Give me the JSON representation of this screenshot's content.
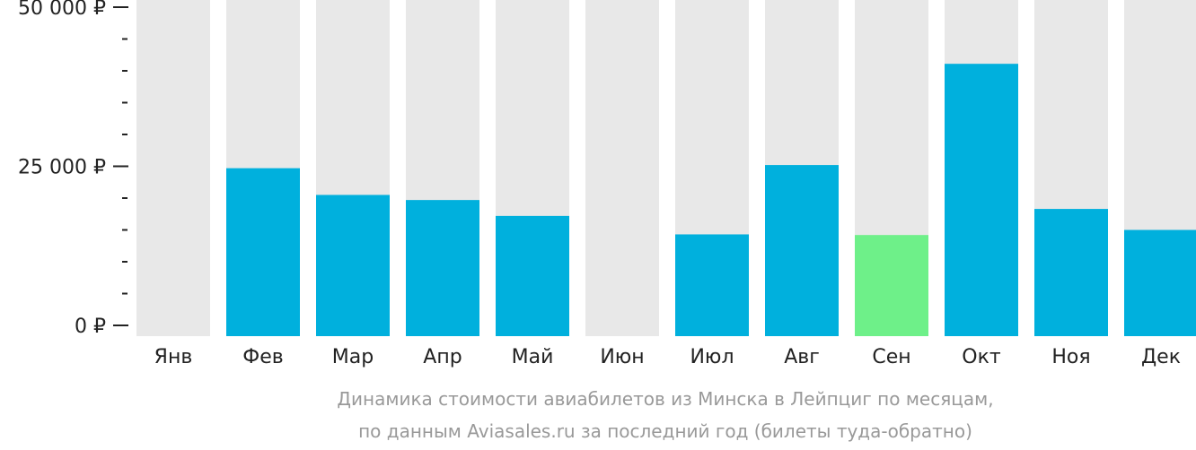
{
  "chart_data": {
    "type": "bar",
    "categories": [
      "Янв",
      "Фев",
      "Мар",
      "Апр",
      "Май",
      "Июн",
      "Июл",
      "Авг",
      "Сен",
      "Окт",
      "Ноя",
      "Дек"
    ],
    "values": [
      null,
      24700,
      20500,
      19700,
      17200,
      null,
      14300,
      25200,
      14200,
      41100,
      18300,
      15000
    ],
    "ylim": [
      0,
      50000
    ],
    "yticks": [
      {
        "value": 0,
        "label": "0 ₽"
      },
      {
        "value": 25000,
        "label": "25 000 ₽"
      },
      {
        "value": 50000,
        "label": "50 000 ₽"
      }
    ],
    "minor_tick_step": 5000,
    "highlight_index": 8,
    "colors": {
      "bar": "#00b0dd",
      "highlight": "#6ef089",
      "background_column": "#e8e8e8"
    },
    "caption_lines": [
      "Динамика стоимости авиабилетов из Минска в Лейпциг по месяцам,",
      "по данным Aviasales.ru за последний год (билеты туда-обратно)"
    ],
    "grid": false,
    "legend": "none"
  }
}
